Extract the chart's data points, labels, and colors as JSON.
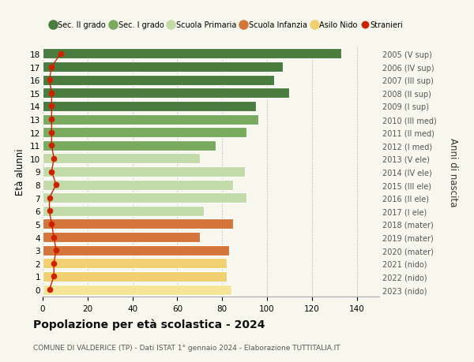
{
  "ages": [
    18,
    17,
    16,
    15,
    14,
    13,
    12,
    11,
    10,
    9,
    8,
    7,
    6,
    5,
    4,
    3,
    2,
    1,
    0
  ],
  "bar_values": [
    133,
    107,
    103,
    110,
    95,
    96,
    91,
    77,
    70,
    90,
    85,
    91,
    72,
    85,
    70,
    83,
    82,
    82,
    84
  ],
  "stranieri": [
    8,
    4,
    3,
    4,
    4,
    4,
    4,
    4,
    5,
    4,
    6,
    3,
    3,
    4,
    5,
    6,
    5,
    5,
    3
  ],
  "right_labels": [
    "2005 (V sup)",
    "2006 (IV sup)",
    "2007 (III sup)",
    "2008 (II sup)",
    "2009 (I sup)",
    "2010 (III med)",
    "2011 (II med)",
    "2012 (I med)",
    "2013 (V ele)",
    "2014 (IV ele)",
    "2015 (III ele)",
    "2016 (II ele)",
    "2017 (I ele)",
    "2018 (mater)",
    "2019 (mater)",
    "2020 (mater)",
    "2021 (nido)",
    "2022 (nido)",
    "2023 (nido)"
  ],
  "bar_colors": [
    "#4a7c3f",
    "#4a7c3f",
    "#4a7c3f",
    "#4a7c3f",
    "#4a7c3f",
    "#7aaa5e",
    "#7aaa5e",
    "#7aaa5e",
    "#c2dba8",
    "#c2dba8",
    "#c2dba8",
    "#c2dba8",
    "#c2dba8",
    "#d4763b",
    "#d4763b",
    "#d4763b",
    "#f0d070",
    "#f0d070",
    "#f5e598"
  ],
  "stranieri_color": "#cc2200",
  "legend_labels": [
    "Sec. II grado",
    "Sec. I grado",
    "Scuola Primaria",
    "Scuola Infanzia",
    "Asilo Nido",
    "Stranieri"
  ],
  "legend_colors": [
    "#4a7c3f",
    "#7aaa5e",
    "#c2dba8",
    "#d4763b",
    "#f0d070",
    "#cc2200"
  ],
  "title": "Popolazione per età scolastica - 2024",
  "subtitle": "COMUNE DI VALDERICE (TP) - Dati ISTAT 1° gennaio 2024 - Elaborazione TUTTITALIA.IT",
  "ylabel": "Età alunni",
  "right_ylabel": "Anni di nascita",
  "xlim": [
    0,
    150
  ],
  "xticks": [
    0,
    20,
    40,
    60,
    80,
    100,
    120,
    140
  ],
  "background_color": "#f7f7ee",
  "bar_height": 0.78,
  "grid_color": "#bbbbbb"
}
